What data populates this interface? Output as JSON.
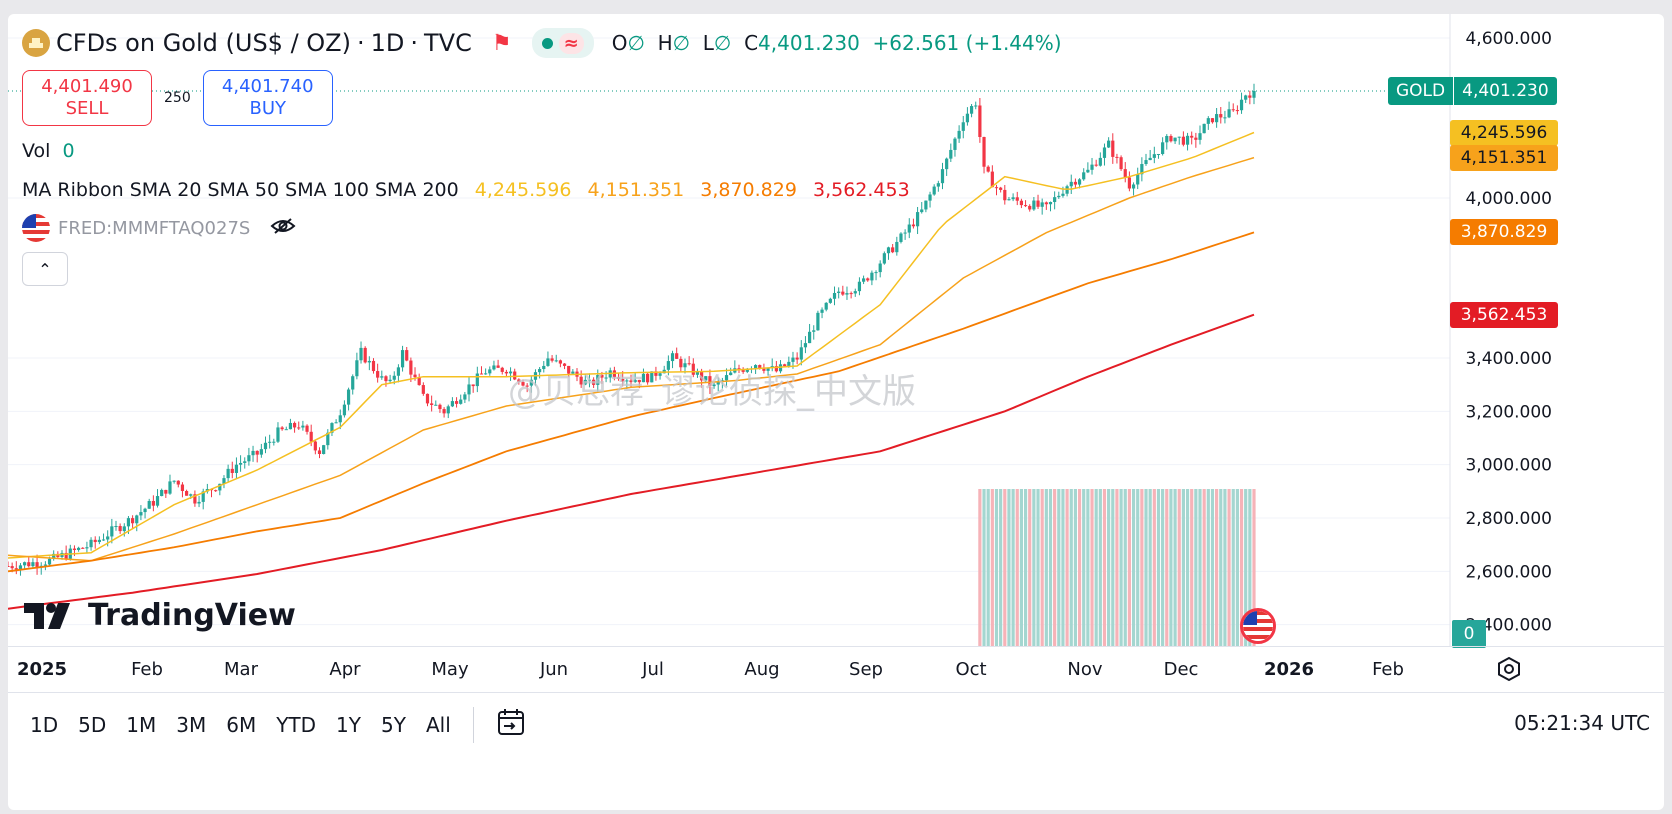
{
  "header": {
    "instrument": "CFDs on Gold (US$ / OZ)",
    "interval": "1D",
    "source": "TVC",
    "sep": "·",
    "ohlc_labels": {
      "o": "O",
      "h": "H",
      "l": "L",
      "c": "C",
      "na": "∅"
    },
    "close": "4,401.230",
    "change": "+62.561",
    "change_pct": "(+1.44%)",
    "market_wave": "≈"
  },
  "trade": {
    "sell_price": "4,401.490",
    "sell_label": "SELL",
    "spread": "250",
    "buy_price": "4,401.740",
    "buy_label": "BUY"
  },
  "volume": {
    "label": "Vol",
    "value": "0"
  },
  "ma_ribbon": {
    "label": "MA Ribbon SMA 20 SMA 50 SMA 100 SMA 200",
    "values": [
      "4,245.596",
      "4,151.351",
      "3,870.829",
      "3,562.453"
    ]
  },
  "fred": {
    "label": "FRED:MMMFTAQ027S"
  },
  "collapse_icon": "⌃",
  "gold_badge": {
    "symbol": "GOLD",
    "price": "4,401.230"
  },
  "vol_axis_label": "0",
  "branding": {
    "logo": "TradingView",
    "watermark": "@贝总荐_谬论侦探_中文版"
  },
  "colors": {
    "up": "#26a69a",
    "down": "#f23645",
    "sma20": "#f5c022",
    "sma50": "#f7a21b",
    "sma100": "#f57c00",
    "sma200": "#e31c25"
  },
  "time_ticks": [
    "2025",
    "Feb",
    "Mar",
    "Apr",
    "May",
    "Jun",
    "Jul",
    "Aug",
    "Sep",
    "Oct",
    "Nov",
    "Dec",
    "2026",
    "Feb"
  ],
  "ranges": [
    "1D",
    "5D",
    "1M",
    "3M",
    "6M",
    "YTD",
    "1Y",
    "5Y",
    "All"
  ],
  "clock": "05:21:34 UTC",
  "chart_data": {
    "type": "candlestick",
    "title": "CFDs on Gold (US$ / OZ) · 1D · TVC",
    "y_ticks": [
      "4,600.000",
      "4,000.000",
      "3,400.000",
      "3,200.000",
      "3,000.000",
      "2,800.000",
      "2,600.000",
      "2,400.000"
    ],
    "y_tick_values": [
      4600,
      4000,
      3400,
      3200,
      3000,
      2800,
      2600,
      2400
    ],
    "ylim": [
      2320,
      4660
    ],
    "last_price": 4401.23,
    "price_path": [
      [
        0,
        2620
      ],
      [
        10,
        2640
      ],
      [
        20,
        2700
      ],
      [
        25,
        2750
      ],
      [
        30,
        2800
      ],
      [
        35,
        2860
      ],
      [
        40,
        2940
      ],
      [
        45,
        2870
      ],
      [
        50,
        2920
      ],
      [
        55,
        3000
      ],
      [
        60,
        3040
      ],
      [
        65,
        3120
      ],
      [
        70,
        3150
      ],
      [
        75,
        3050
      ],
      [
        80,
        3200
      ],
      [
        85,
        3420
      ],
      [
        90,
        3320
      ],
      [
        92,
        3300
      ],
      [
        95,
        3420
      ],
      [
        100,
        3250
      ],
      [
        105,
        3200
      ],
      [
        110,
        3280
      ],
      [
        115,
        3350
      ],
      [
        120,
        3360
      ],
      [
        125,
        3300
      ],
      [
        130,
        3400
      ],
      [
        135,
        3350
      ],
      [
        140,
        3300
      ],
      [
        145,
        3350
      ],
      [
        150,
        3320
      ],
      [
        155,
        3330
      ],
      [
        160,
        3400
      ],
      [
        165,
        3350
      ],
      [
        170,
        3290
      ],
      [
        175,
        3350
      ],
      [
        180,
        3380
      ],
      [
        185,
        3350
      ],
      [
        190,
        3400
      ],
      [
        195,
        3550
      ],
      [
        200,
        3650
      ],
      [
        205,
        3670
      ],
      [
        210,
        3760
      ],
      [
        215,
        3850
      ],
      [
        220,
        3950
      ],
      [
        225,
        4100
      ],
      [
        230,
        4300
      ],
      [
        233,
        4360
      ],
      [
        235,
        4100
      ],
      [
        240,
        4000
      ],
      [
        245,
        3980
      ],
      [
        250,
        3960
      ],
      [
        255,
        4050
      ],
      [
        260,
        4100
      ],
      [
        265,
        4200
      ],
      [
        270,
        4050
      ],
      [
        275,
        4150
      ],
      [
        280,
        4230
      ],
      [
        285,
        4210
      ],
      [
        290,
        4300
      ],
      [
        295,
        4320
      ],
      [
        298,
        4390
      ],
      [
        300,
        4401
      ]
    ],
    "sma_anchors": {
      "sma20": {
        "label": "SMA 20",
        "value": 4245.596,
        "points": [
          [
            0,
            2650
          ],
          [
            20,
            2670
          ],
          [
            40,
            2850
          ],
          [
            60,
            2980
          ],
          [
            80,
            3140
          ],
          [
            90,
            3300
          ],
          [
            100,
            3330
          ],
          [
            120,
            3330
          ],
          [
            150,
            3345
          ],
          [
            170,
            3350
          ],
          [
            190,
            3370
          ],
          [
            210,
            3600
          ],
          [
            225,
            3900
          ],
          [
            240,
            4080
          ],
          [
            255,
            4030
          ],
          [
            270,
            4080
          ],
          [
            285,
            4150
          ],
          [
            300,
            4245.596
          ]
        ]
      },
      "sma50": {
        "label": "SMA 50",
        "value": 4151.351,
        "points": [
          [
            0,
            2660
          ],
          [
            20,
            2640
          ],
          [
            40,
            2740
          ],
          [
            60,
            2850
          ],
          [
            80,
            2960
          ],
          [
            100,
            3130
          ],
          [
            120,
            3220
          ],
          [
            150,
            3290
          ],
          [
            175,
            3315
          ],
          [
            190,
            3340
          ],
          [
            210,
            3450
          ],
          [
            230,
            3700
          ],
          [
            250,
            3870
          ],
          [
            270,
            4000
          ],
          [
            285,
            4080
          ],
          [
            300,
            4151.351
          ]
        ]
      },
      "sma100": {
        "label": "SMA 100",
        "value": 3870.829,
        "points": [
          [
            0,
            2600
          ],
          [
            20,
            2640
          ],
          [
            40,
            2690
          ],
          [
            60,
            2750
          ],
          [
            80,
            2800
          ],
          [
            100,
            2930
          ],
          [
            120,
            3050
          ],
          [
            150,
            3180
          ],
          [
            170,
            3250
          ],
          [
            200,
            3350
          ],
          [
            230,
            3510
          ],
          [
            260,
            3680
          ],
          [
            280,
            3770
          ],
          [
            300,
            3870.829
          ]
        ]
      },
      "sma200": {
        "label": "SMA 200",
        "value": 3562.453,
        "points": [
          [
            0,
            2460
          ],
          [
            30,
            2520
          ],
          [
            60,
            2590
          ],
          [
            90,
            2680
          ],
          [
            120,
            2790
          ],
          [
            150,
            2890
          ],
          [
            180,
            2970
          ],
          [
            210,
            3050
          ],
          [
            240,
            3200
          ],
          [
            260,
            3330
          ],
          [
            280,
            3450
          ],
          [
            300,
            3562.453
          ]
        ]
      }
    },
    "volume_bars": {
      "start_index": 234,
      "end_index": 300,
      "value": 0
    }
  }
}
